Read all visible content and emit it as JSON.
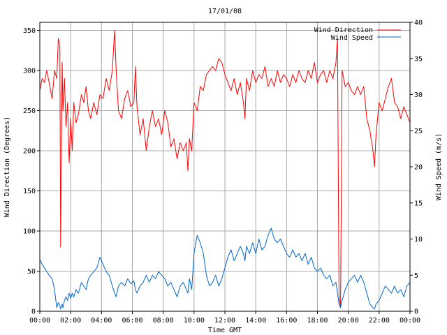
{
  "chart_data": {
    "type": "line",
    "title": "17/01/08",
    "xlabel": "Time GMT",
    "ylabel_left": "Wind Direction (Degrees)",
    "ylabel_right": "Wind Speed (m/s)",
    "x_ticks": [
      "00:00",
      "02:00",
      "04:00",
      "06:00",
      "08:00",
      "10:00",
      "12:00",
      "14:00",
      "16:00",
      "18:00",
      "20:00",
      "22:00",
      "00:00"
    ],
    "y_left_ticks": [
      0,
      50,
      100,
      150,
      200,
      250,
      300,
      350
    ],
    "y_right_ticks": [
      0,
      5,
      10,
      15,
      20,
      25,
      30,
      35,
      40
    ],
    "x_range_hours": [
      0,
      24
    ],
    "ylim_left": [
      0,
      360
    ],
    "ylim_right": [
      0,
      40
    ],
    "grid": true,
    "legend_position": "top-right",
    "series": [
      {
        "name": "Wind Direction",
        "axis": "left",
        "color": "#ff0000",
        "points": [
          [
            0.0,
            275
          ],
          [
            0.15,
            290
          ],
          [
            0.3,
            285
          ],
          [
            0.45,
            300
          ],
          [
            0.6,
            285
          ],
          [
            0.8,
            265
          ],
          [
            0.95,
            300
          ],
          [
            1.1,
            290
          ],
          [
            1.2,
            340
          ],
          [
            1.3,
            330
          ],
          [
            1.35,
            80
          ],
          [
            1.45,
            310
          ],
          [
            1.5,
            250
          ],
          [
            1.6,
            290
          ],
          [
            1.7,
            230
          ],
          [
            1.8,
            260
          ],
          [
            1.9,
            185
          ],
          [
            2.0,
            240
          ],
          [
            2.1,
            200
          ],
          [
            2.2,
            260
          ],
          [
            2.35,
            235
          ],
          [
            2.5,
            245
          ],
          [
            2.7,
            270
          ],
          [
            2.85,
            260
          ],
          [
            3.0,
            280
          ],
          [
            3.15,
            250
          ],
          [
            3.3,
            240
          ],
          [
            3.5,
            260
          ],
          [
            3.7,
            245
          ],
          [
            3.9,
            270
          ],
          [
            4.1,
            265
          ],
          [
            4.3,
            290
          ],
          [
            4.5,
            275
          ],
          [
            4.7,
            300
          ],
          [
            4.85,
            350
          ],
          [
            4.95,
            300
          ],
          [
            5.1,
            250
          ],
          [
            5.3,
            240
          ],
          [
            5.5,
            265
          ],
          [
            5.7,
            275
          ],
          [
            5.9,
            255
          ],
          [
            6.1,
            260
          ],
          [
            6.2,
            305
          ],
          [
            6.3,
            255
          ],
          [
            6.5,
            220
          ],
          [
            6.7,
            240
          ],
          [
            6.9,
            200
          ],
          [
            7.1,
            230
          ],
          [
            7.3,
            250
          ],
          [
            7.5,
            230
          ],
          [
            7.7,
            240
          ],
          [
            7.9,
            220
          ],
          [
            8.1,
            250
          ],
          [
            8.3,
            235
          ],
          [
            8.5,
            205
          ],
          [
            8.7,
            215
          ],
          [
            8.9,
            190
          ],
          [
            9.1,
            210
          ],
          [
            9.3,
            200
          ],
          [
            9.5,
            210
          ],
          [
            9.6,
            175
          ],
          [
            9.7,
            215
          ],
          [
            9.85,
            200
          ],
          [
            10.0,
            260
          ],
          [
            10.2,
            250
          ],
          [
            10.4,
            280
          ],
          [
            10.6,
            275
          ],
          [
            10.8,
            295
          ],
          [
            11.0,
            300
          ],
          [
            11.2,
            305
          ],
          [
            11.4,
            300
          ],
          [
            11.6,
            315
          ],
          [
            11.8,
            310
          ],
          [
            12.0,
            295
          ],
          [
            12.2,
            285
          ],
          [
            12.4,
            275
          ],
          [
            12.6,
            290
          ],
          [
            12.8,
            270
          ],
          [
            13.0,
            285
          ],
          [
            13.2,
            260
          ],
          [
            13.3,
            240
          ],
          [
            13.4,
            290
          ],
          [
            13.6,
            275
          ],
          [
            13.8,
            300
          ],
          [
            14.0,
            285
          ],
          [
            14.2,
            295
          ],
          [
            14.4,
            290
          ],
          [
            14.6,
            305
          ],
          [
            14.8,
            280
          ],
          [
            15.0,
            290
          ],
          [
            15.2,
            280
          ],
          [
            15.4,
            300
          ],
          [
            15.6,
            285
          ],
          [
            15.8,
            295
          ],
          [
            16.0,
            290
          ],
          [
            16.2,
            280
          ],
          [
            16.4,
            295
          ],
          [
            16.6,
            285
          ],
          [
            16.8,
            300
          ],
          [
            17.0,
            290
          ],
          [
            17.2,
            285
          ],
          [
            17.4,
            300
          ],
          [
            17.6,
            290
          ],
          [
            17.8,
            310
          ],
          [
            18.0,
            285
          ],
          [
            18.2,
            295
          ],
          [
            18.4,
            300
          ],
          [
            18.6,
            285
          ],
          [
            18.8,
            300
          ],
          [
            19.0,
            290
          ],
          [
            19.2,
            310
          ],
          [
            19.3,
            340
          ],
          [
            19.4,
            20
          ],
          [
            19.5,
            5
          ],
          [
            19.6,
            300
          ],
          [
            19.8,
            280
          ],
          [
            20.0,
            285
          ],
          [
            20.2,
            275
          ],
          [
            20.4,
            270
          ],
          [
            20.6,
            280
          ],
          [
            20.8,
            270
          ],
          [
            21.0,
            280
          ],
          [
            21.2,
            240
          ],
          [
            21.4,
            225
          ],
          [
            21.6,
            200
          ],
          [
            21.7,
            180
          ],
          [
            21.8,
            220
          ],
          [
            22.0,
            260
          ],
          [
            22.2,
            250
          ],
          [
            22.4,
            265
          ],
          [
            22.6,
            280
          ],
          [
            22.8,
            290
          ],
          [
            23.0,
            260
          ],
          [
            23.2,
            255
          ],
          [
            23.4,
            240
          ],
          [
            23.6,
            255
          ],
          [
            23.8,
            245
          ],
          [
            24.0,
            235
          ]
        ]
      },
      {
        "name": "Wind Speed",
        "axis": "right",
        "color": "#0066cc",
        "points": [
          [
            0.0,
            7.2
          ],
          [
            0.15,
            6.5
          ],
          [
            0.3,
            6.0
          ],
          [
            0.45,
            5.5
          ],
          [
            0.6,
            5.0
          ],
          [
            0.8,
            4.5
          ],
          [
            0.95,
            3.0
          ],
          [
            1.1,
            0.5
          ],
          [
            1.2,
            1.2
          ],
          [
            1.3,
            0.8
          ],
          [
            1.35,
            0.3
          ],
          [
            1.45,
            1.0
          ],
          [
            1.5,
            0.5
          ],
          [
            1.6,
            1.5
          ],
          [
            1.7,
            2.0
          ],
          [
            1.8,
            1.5
          ],
          [
            1.9,
            2.5
          ],
          [
            2.0,
            1.8
          ],
          [
            2.1,
            2.5
          ],
          [
            2.2,
            2.0
          ],
          [
            2.35,
            3.0
          ],
          [
            2.5,
            2.5
          ],
          [
            2.7,
            4.0
          ],
          [
            2.85,
            3.5
          ],
          [
            3.0,
            3.0
          ],
          [
            3.15,
            4.5
          ],
          [
            3.3,
            5.0
          ],
          [
            3.5,
            5.5
          ],
          [
            3.7,
            6.0
          ],
          [
            3.9,
            7.5
          ],
          [
            4.1,
            6.5
          ],
          [
            4.3,
            5.5
          ],
          [
            4.5,
            5.0
          ],
          [
            4.7,
            3.5
          ],
          [
            4.85,
            2.5
          ],
          [
            4.95,
            2.0
          ],
          [
            5.1,
            3.5
          ],
          [
            5.3,
            4.0
          ],
          [
            5.5,
            3.5
          ],
          [
            5.7,
            4.5
          ],
          [
            5.9,
            3.8
          ],
          [
            6.1,
            4.2
          ],
          [
            6.2,
            3.0
          ],
          [
            6.3,
            2.5
          ],
          [
            6.5,
            3.5
          ],
          [
            6.7,
            4.0
          ],
          [
            6.9,
            5.0
          ],
          [
            7.1,
            4.0
          ],
          [
            7.3,
            5.0
          ],
          [
            7.5,
            4.5
          ],
          [
            7.7,
            5.5
          ],
          [
            7.9,
            5.0
          ],
          [
            8.1,
            4.5
          ],
          [
            8.3,
            3.5
          ],
          [
            8.5,
            4.0
          ],
          [
            8.7,
            3.0
          ],
          [
            8.9,
            2.0
          ],
          [
            9.1,
            3.5
          ],
          [
            9.3,
            4.0
          ],
          [
            9.5,
            3.0
          ],
          [
            9.6,
            2.5
          ],
          [
            9.7,
            4.5
          ],
          [
            9.85,
            3.0
          ],
          [
            10.0,
            8.0
          ],
          [
            10.2,
            10.5
          ],
          [
            10.4,
            9.5
          ],
          [
            10.6,
            8.0
          ],
          [
            10.8,
            5.0
          ],
          [
            11.0,
            3.5
          ],
          [
            11.2,
            4.0
          ],
          [
            11.4,
            5.0
          ],
          [
            11.6,
            3.5
          ],
          [
            11.8,
            4.5
          ],
          [
            12.0,
            6.0
          ],
          [
            12.2,
            7.5
          ],
          [
            12.4,
            8.5
          ],
          [
            12.6,
            7.0
          ],
          [
            12.8,
            8.0
          ],
          [
            13.0,
            9.0
          ],
          [
            13.2,
            8.0
          ],
          [
            13.3,
            7.0
          ],
          [
            13.4,
            9.0
          ],
          [
            13.6,
            8.0
          ],
          [
            13.8,
            9.5
          ],
          [
            14.0,
            8.0
          ],
          [
            14.2,
            10.0
          ],
          [
            14.4,
            8.5
          ],
          [
            14.6,
            9.0
          ],
          [
            14.8,
            10.5
          ],
          [
            15.0,
            11.5
          ],
          [
            15.2,
            10.0
          ],
          [
            15.4,
            9.5
          ],
          [
            15.6,
            10.0
          ],
          [
            15.8,
            9.0
          ],
          [
            16.0,
            8.0
          ],
          [
            16.2,
            7.5
          ],
          [
            16.4,
            8.5
          ],
          [
            16.6,
            7.5
          ],
          [
            16.8,
            8.0
          ],
          [
            17.0,
            7.0
          ],
          [
            17.2,
            8.0
          ],
          [
            17.4,
            6.5
          ],
          [
            17.6,
            7.5
          ],
          [
            17.8,
            6.0
          ],
          [
            18.0,
            5.5
          ],
          [
            18.2,
            6.0
          ],
          [
            18.4,
            5.0
          ],
          [
            18.6,
            4.5
          ],
          [
            18.8,
            5.0
          ],
          [
            19.0,
            3.5
          ],
          [
            19.2,
            4.0
          ],
          [
            19.3,
            2.5
          ],
          [
            19.4,
            1.0
          ],
          [
            19.5,
            0.5
          ],
          [
            19.6,
            1.5
          ],
          [
            19.8,
            3.0
          ],
          [
            20.0,
            4.0
          ],
          [
            20.2,
            4.5
          ],
          [
            20.4,
            5.0
          ],
          [
            20.6,
            4.0
          ],
          [
            20.8,
            5.0
          ],
          [
            21.0,
            4.0
          ],
          [
            21.2,
            2.5
          ],
          [
            21.4,
            1.0
          ],
          [
            21.6,
            0.5
          ],
          [
            21.7,
            0.3
          ],
          [
            21.8,
            1.0
          ],
          [
            22.0,
            1.5
          ],
          [
            22.2,
            2.5
          ],
          [
            22.4,
            3.5
          ],
          [
            22.6,
            3.0
          ],
          [
            22.8,
            2.5
          ],
          [
            23.0,
            3.5
          ],
          [
            23.2,
            2.5
          ],
          [
            23.4,
            3.0
          ],
          [
            23.6,
            2.0
          ],
          [
            23.8,
            3.5
          ],
          [
            24.0,
            4.0
          ]
        ]
      }
    ]
  }
}
